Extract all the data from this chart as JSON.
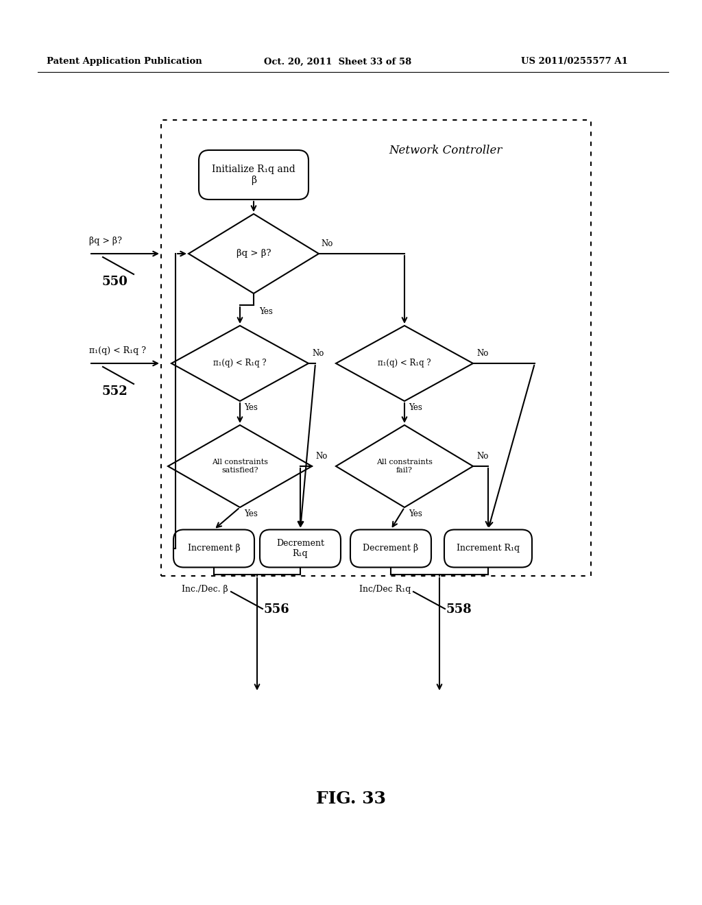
{
  "bg_color": "#ffffff",
  "header_text": "Patent Application Publication",
  "header_date": "Oct. 20, 2011  Sheet 33 of 58",
  "header_patent": "US 2011/0255577 A1",
  "figure_label": "FIG. 33",
  "network_controller_label": "Network Controller",
  "init_box_text": "Initialize R₁q and\nβ",
  "diamond1_text": "βq > β?",
  "diamond2L_text": "π₁(q) < R₁q ?",
  "diamond2R_text": "π₁(q) < R₁q ?",
  "diamond3L_text": "All constraints\nsatisfied?",
  "diamond3R_text": "All constraints\nfail?",
  "box_inc_beta": "Increment β",
  "box_dec_R": "Decrement\nR₁q",
  "box_dec_beta": "Decrement β",
  "box_inc_R": "Increment R₁q",
  "label_550": "550",
  "label_552": "552",
  "label_556": "556",
  "label_558": "558",
  "arrow_550_text": "βq > β?",
  "arrow_552_text": "π₁(q) < R₁q ?",
  "arrow_556_text": "Inc./Dec. β",
  "arrow_558_text": "Inc/Dec R₁q"
}
